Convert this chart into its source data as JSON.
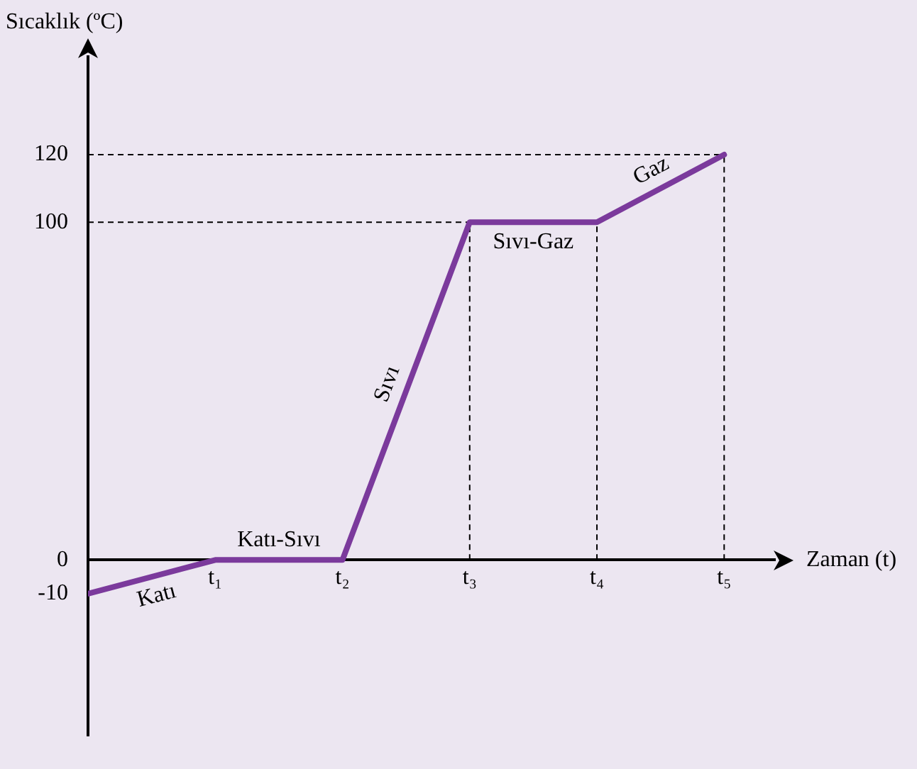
{
  "chart_data": {
    "type": "line",
    "xlabel": "Zaman (t)",
    "ylabel": "Sıcaklık (ºC)",
    "categories": [
      null,
      "t₁",
      "t₂",
      "t₃",
      "t₄",
      "t₅"
    ],
    "series": [
      {
        "color": "#7b3a9c",
        "values": [
          -10,
          0,
          0,
          100,
          100,
          120
        ]
      }
    ],
    "ylim": [
      -52,
      149
    ],
    "yticks": [
      -10,
      0,
      100,
      120
    ],
    "grid": false,
    "legend": false,
    "marker": "none",
    "line_style": "solid",
    "ref_lines": [
      {
        "axis": "y",
        "value": 100,
        "line_style": "dashed"
      },
      {
        "axis": "y",
        "value": 120,
        "line_style": "dashed"
      },
      {
        "axis": "x",
        "value": "t₃",
        "line_style": "dashed"
      },
      {
        "axis": "x",
        "value": "t₄",
        "line_style": "dashed"
      },
      {
        "axis": "x",
        "value": "t₅",
        "line_style": "dashed"
      }
    ],
    "annotations": [
      "Katı",
      "Katı-Sıvı",
      "Sıvı",
      "Sıvı-Gaz",
      "Gaz"
    ]
  }
}
